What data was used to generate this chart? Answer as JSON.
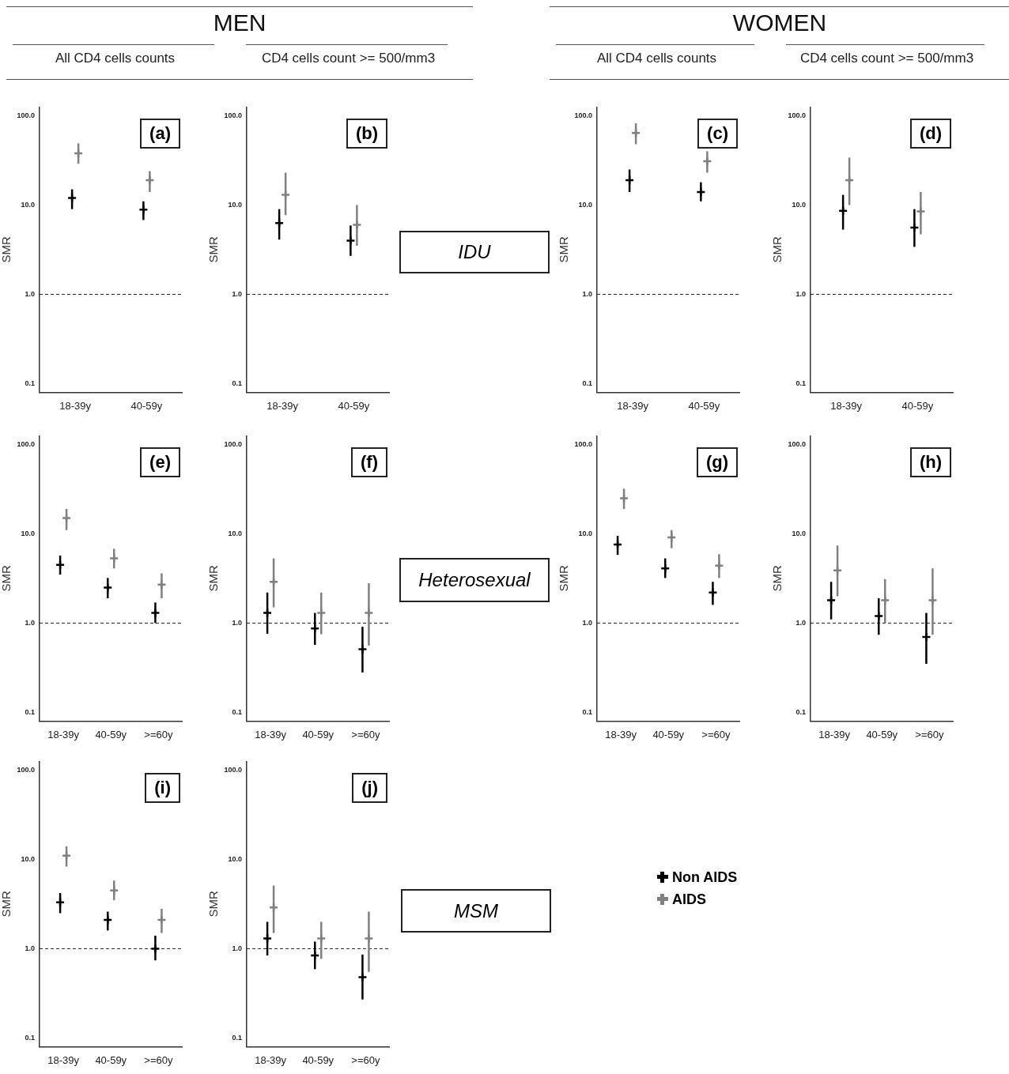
{
  "chart_data": [
    {
      "type": "other",
      "title": "MEN",
      "annotations": [
        "All CD4 cells counts",
        "CD4 cells count >= 500/mm3"
      ]
    },
    {
      "type": "other",
      "title": "WOMEN",
      "annotations": [
        "All CD4 cells counts",
        "CD4 cells count >= 500/mm3"
      ]
    },
    {
      "type": "scatter",
      "ylabel": "SMR",
      "annotations": [
        "(a)"
      ],
      "categories": [
        "18-39y",
        "40-59y"
      ],
      "log": true,
      "ylim": [
        0.08,
        125
      ],
      "yticks": [
        {
          "value": 0.1,
          "label": "0.1"
        },
        {
          "value": 1,
          "label": "1.0"
        },
        {
          "value": 10,
          "label": "10.0"
        },
        {
          "value": 100,
          "label": "100.0"
        }
      ],
      "marker": "cross",
      "ref_lines": [
        {
          "axis": "y",
          "value": 1,
          "line_style": "dashed"
        }
      ],
      "series": [
        {
          "color": "#000000",
          "values": [
            12,
            8.9
          ],
          "errors": [
            [
              9.0,
              15
            ],
            [
              6.8,
              11
            ]
          ]
        },
        {
          "color": "#808080",
          "values": [
            38,
            19
          ],
          "errors": [
            [
              29,
              49
            ],
            [
              14,
              24
            ]
          ]
        }
      ]
    },
    {
      "type": "scatter",
      "ylabel": "SMR",
      "annotations": [
        "(b)"
      ],
      "categories": [
        "18-39y",
        "40-59y"
      ],
      "log": true,
      "ylim": [
        0.08,
        125
      ],
      "yticks": [
        {
          "value": 0.1,
          "label": "0.1"
        },
        {
          "value": 1,
          "label": "1.0"
        },
        {
          "value": 10,
          "label": "10.0"
        },
        {
          "value": 100,
          "label": "100.0"
        }
      ],
      "marker": "cross",
      "ref_lines": [
        {
          "axis": "y",
          "value": 1,
          "line_style": "dashed"
        }
      ],
      "series": [
        {
          "color": "#000000",
          "values": [
            6.3,
            4.0
          ],
          "errors": [
            [
              4.1,
              9.0
            ],
            [
              2.7,
              5.9
            ]
          ]
        },
        {
          "color": "#808080",
          "values": [
            13,
            6.0
          ],
          "errors": [
            [
              7.7,
              23
            ],
            [
              3.5,
              10
            ]
          ]
        }
      ]
    },
    {
      "type": "other",
      "title": "IDU"
    },
    {
      "type": "scatter",
      "ylabel": "SMR",
      "annotations": [
        "(c)"
      ],
      "categories": [
        "18-39y",
        "40-59y"
      ],
      "log": true,
      "ylim": [
        0.08,
        125
      ],
      "yticks": [
        {
          "value": 0.1,
          "label": "0.1"
        },
        {
          "value": 1,
          "label": "1.0"
        },
        {
          "value": 10,
          "label": "10.0"
        },
        {
          "value": 100,
          "label": "100.0"
        }
      ],
      "marker": "cross",
      "ref_lines": [
        {
          "axis": "y",
          "value": 1,
          "line_style": "dashed"
        }
      ],
      "series": [
        {
          "color": "#000000",
          "values": [
            19,
            14
          ],
          "errors": [
            [
              14,
              25
            ],
            [
              11,
              18
            ]
          ]
        },
        {
          "color": "#808080",
          "values": [
            64,
            31
          ],
          "errors": [
            [
              48,
              82
            ],
            [
              23,
              40
            ]
          ]
        }
      ]
    },
    {
      "type": "scatter",
      "ylabel": "SMR",
      "annotations": [
        "(d)"
      ],
      "categories": [
        "18-39y",
        "40-59y"
      ],
      "log": true,
      "ylim": [
        0.08,
        125
      ],
      "yticks": [
        {
          "value": 0.1,
          "label": "0.1"
        },
        {
          "value": 1,
          "label": "1.0"
        },
        {
          "value": 10,
          "label": "10.0"
        },
        {
          "value": 100,
          "label": "100.0"
        }
      ],
      "marker": "cross",
      "ref_lines": [
        {
          "axis": "y",
          "value": 1,
          "line_style": "dashed"
        }
      ],
      "series": [
        {
          "color": "#000000",
          "values": [
            8.6,
            5.6
          ],
          "errors": [
            [
              5.3,
              13
            ],
            [
              3.4,
              9.0
            ]
          ]
        },
        {
          "color": "#808080",
          "values": [
            19,
            8.5
          ],
          "errors": [
            [
              10,
              34
            ],
            [
              4.7,
              14
            ]
          ]
        }
      ]
    },
    {
      "type": "scatter",
      "ylabel": "SMR",
      "annotations": [
        "(e)"
      ],
      "categories": [
        "18-39y",
        "40-59y",
        ">=60y"
      ],
      "log": true,
      "ylim": [
        0.08,
        125
      ],
      "yticks": [
        {
          "value": 0.1,
          "label": "0.1"
        },
        {
          "value": 1,
          "label": "1.0"
        },
        {
          "value": 10,
          "label": "10.0"
        },
        {
          "value": 100,
          "label": "100.0"
        }
      ],
      "marker": "cross",
      "ref_lines": [
        {
          "axis": "y",
          "value": 1,
          "line_style": "dashed"
        }
      ],
      "series": [
        {
          "color": "#000000",
          "values": [
            4.5,
            2.5,
            1.3
          ],
          "errors": [
            [
              3.5,
              5.7
            ],
            [
              1.9,
              3.2
            ],
            [
              1.0,
              1.7
            ]
          ]
        },
        {
          "color": "#808080",
          "values": [
            15,
            5.3,
            2.7
          ],
          "errors": [
            [
              11,
              19
            ],
            [
              4.1,
              6.8
            ],
            [
              1.9,
              3.6
            ]
          ]
        }
      ]
    },
    {
      "type": "scatter",
      "ylabel": "SMR",
      "annotations": [
        "(f)"
      ],
      "categories": [
        "18-39y",
        "40-59y",
        ">=60y"
      ],
      "log": true,
      "ylim": [
        0.08,
        125
      ],
      "yticks": [
        {
          "value": 0.1,
          "label": "0.1"
        },
        {
          "value": 1,
          "label": "1.0"
        },
        {
          "value": 10,
          "label": "10.0"
        },
        {
          "value": 100,
          "label": "100.0"
        }
      ],
      "marker": "cross",
      "ref_lines": [
        {
          "axis": "y",
          "value": 1,
          "line_style": "dashed"
        }
      ],
      "series": [
        {
          "color": "#000000",
          "values": [
            1.3,
            0.87,
            0.51
          ],
          "errors": [
            [
              0.76,
              2.2
            ],
            [
              0.57,
              1.3
            ],
            [
              0.28,
              0.91
            ]
          ]
        },
        {
          "color": "#808080",
          "values": [
            2.9,
            1.3,
            1.3
          ],
          "errors": [
            [
              1.5,
              5.3
            ],
            [
              0.75,
              2.2
            ],
            [
              0.56,
              2.8
            ]
          ]
        }
      ]
    },
    {
      "type": "other",
      "title": "Heterosexual"
    },
    {
      "type": "scatter",
      "ylabel": "SMR",
      "annotations": [
        "(g)"
      ],
      "categories": [
        "18-39y",
        "40-59y",
        ">=60y"
      ],
      "log": true,
      "ylim": [
        0.08,
        125
      ],
      "yticks": [
        {
          "value": 0.1,
          "label": "0.1"
        },
        {
          "value": 1,
          "label": "1.0"
        },
        {
          "value": 10,
          "label": "10.0"
        },
        {
          "value": 100,
          "label": "100.0"
        }
      ],
      "marker": "cross",
      "ref_lines": [
        {
          "axis": "y",
          "value": 1,
          "line_style": "dashed"
        }
      ],
      "series": [
        {
          "color": "#000000",
          "values": [
            7.6,
            4.1,
            2.2
          ],
          "errors": [
            [
              5.8,
              9.5
            ],
            [
              3.2,
              5.3
            ],
            [
              1.6,
              2.9
            ]
          ]
        },
        {
          "color": "#808080",
          "values": [
            25,
            9.1,
            4.4
          ],
          "errors": [
            [
              19,
              32
            ],
            [
              6.9,
              11
            ],
            [
              3.2,
              5.9
            ]
          ]
        }
      ]
    },
    {
      "type": "scatter",
      "ylabel": "SMR",
      "annotations": [
        "(h)"
      ],
      "categories": [
        "18-39y",
        "40-59y",
        ">=60y"
      ],
      "log": true,
      "ylim": [
        0.08,
        125
      ],
      "yticks": [
        {
          "value": 0.1,
          "label": "0.1"
        },
        {
          "value": 1,
          "label": "1.0"
        },
        {
          "value": 10,
          "label": "10.0"
        },
        {
          "value": 100,
          "label": "100.0"
        }
      ],
      "marker": "cross",
      "ref_lines": [
        {
          "axis": "y",
          "value": 1,
          "line_style": "dashed"
        }
      ],
      "series": [
        {
          "color": "#000000",
          "values": [
            1.8,
            1.2,
            0.7
          ],
          "errors": [
            [
              1.1,
              2.9
            ],
            [
              0.74,
              1.9
            ],
            [
              0.35,
              1.3
            ]
          ]
        },
        {
          "color": "#808080",
          "values": [
            3.9,
            1.8,
            1.8
          ],
          "errors": [
            [
              2.0,
              7.4
            ],
            [
              1.0,
              3.1
            ],
            [
              0.74,
              4.1
            ]
          ]
        }
      ]
    },
    {
      "type": "scatter",
      "ylabel": "SMR",
      "annotations": [
        "(i)"
      ],
      "categories": [
        "18-39y",
        "40-59y",
        ">=60y"
      ],
      "log": true,
      "ylim": [
        0.08,
        125
      ],
      "yticks": [
        {
          "value": 0.1,
          "label": "0.1"
        },
        {
          "value": 1,
          "label": "1.0"
        },
        {
          "value": 10,
          "label": "10.0"
        },
        {
          "value": 100,
          "label": "100.0"
        }
      ],
      "marker": "cross",
      "ref_lines": [
        {
          "axis": "y",
          "value": 1,
          "line_style": "dashed"
        }
      ],
      "series": [
        {
          "color": "#000000",
          "values": [
            3.3,
            2.1,
            1.0
          ],
          "errors": [
            [
              2.5,
              4.2
            ],
            [
              1.6,
              2.6
            ],
            [
              0.74,
              1.4
            ]
          ]
        },
        {
          "color": "#808080",
          "values": [
            11,
            4.5,
            2.1
          ],
          "errors": [
            [
              8.3,
              14
            ],
            [
              3.5,
              5.8
            ],
            [
              1.5,
              2.8
            ]
          ]
        }
      ]
    },
    {
      "type": "scatter",
      "ylabel": "SMR",
      "annotations": [
        "(j)"
      ],
      "categories": [
        "18-39y",
        "40-59y",
        ">=60y"
      ],
      "log": true,
      "ylim": [
        0.08,
        125
      ],
      "yticks": [
        {
          "value": 0.1,
          "label": "0.1"
        },
        {
          "value": 1,
          "label": "1.0"
        },
        {
          "value": 10,
          "label": "10.0"
        },
        {
          "value": 100,
          "label": "100.0"
        }
      ],
      "marker": "cross",
      "legend": "right",
      "ref_lines": [
        {
          "axis": "y",
          "value": 1,
          "line_style": "dashed"
        }
      ],
      "series": [
        {
          "name": "Non AIDS",
          "color": "#000000",
          "values": [
            1.3,
            0.84,
            0.48
          ],
          "errors": [
            [
              0.84,
              2.0
            ],
            [
              0.59,
              1.2
            ],
            [
              0.27,
              0.86
            ]
          ]
        },
        {
          "name": "AIDS",
          "color": "#808080",
          "values": [
            2.9,
            1.3,
            1.3
          ],
          "errors": [
            [
              1.5,
              5.1
            ],
            [
              0.77,
              2.0
            ],
            [
              0.55,
              2.6
            ]
          ]
        }
      ]
    },
    {
      "type": "other",
      "title": "MSM"
    }
  ]
}
